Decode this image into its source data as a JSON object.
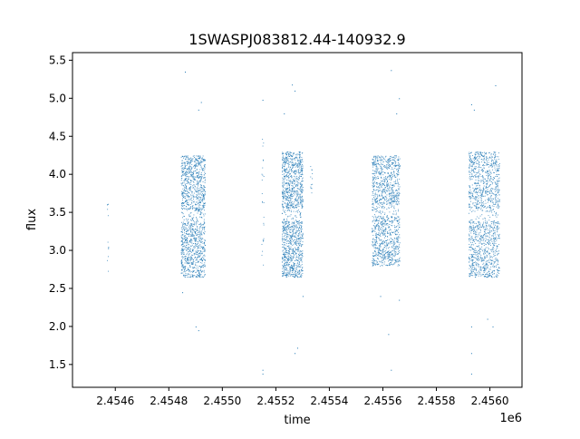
{
  "chart_data": {
    "type": "scatter",
    "title": "1SWASPJ083812.44-140932.9",
    "xlabel": "time",
    "ylabel": "flux",
    "x_offset_label": "1e6",
    "xlim": [
      2.45444,
      2.45612
    ],
    "ylim": [
      1.2,
      5.6
    ],
    "x_ticks": [
      2.4546,
      2.4548,
      2.455,
      2.4552,
      2.4554,
      2.4556,
      2.4558,
      2.456
    ],
    "x_tick_labels": [
      "2.4546",
      "2.4548",
      "2.4550",
      "2.4552",
      "2.4554",
      "2.4556",
      "2.4558",
      "2.4560"
    ],
    "y_ticks": [
      1.5,
      2.0,
      2.5,
      3.0,
      3.5,
      4.0,
      4.5,
      5.0,
      5.5
    ],
    "y_tick_labels": [
      "1.5",
      "2.0",
      "2.5",
      "3.0",
      "3.5",
      "4.0",
      "4.5",
      "5.0",
      "5.5"
    ],
    "grid": false,
    "series": [
      {
        "color": "#1f77b4",
        "marker": "point",
        "clusters": [
          {
            "x_range": [
              2.454568,
              2.454574
            ],
            "y_range": [
              2.5,
              3.9
            ],
            "count": 12,
            "outliers": []
          },
          {
            "x_range": [
              2.454845,
              2.454935
            ],
            "y_range": [
              2.65,
              4.25
            ],
            "count": 1400,
            "outliers": [
              [
                2.45486,
                5.35
              ],
              [
                2.45491,
                4.85
              ],
              [
                2.45492,
                4.95
              ],
              [
                2.4549,
                2.0
              ],
              [
                2.45491,
                1.95
              ],
              [
                2.45485,
                2.45
              ]
            ]
          },
          {
            "x_range": [
              2.455146,
              2.455154
            ],
            "y_range": [
              2.7,
              4.8
            ],
            "count": 25,
            "outliers": [
              [
                2.45515,
                1.43
              ],
              [
                2.45515,
                1.38
              ],
              [
                2.45515,
                4.98
              ]
            ]
          },
          {
            "x_range": [
              2.455222,
              2.4553
            ],
            "y_range": [
              2.65,
              4.3
            ],
            "count": 1400,
            "outliers": [
              [
                2.45526,
                5.18
              ],
              [
                2.45527,
                5.1
              ],
              [
                2.45523,
                4.8
              ],
              [
                2.45527,
                1.65
              ],
              [
                2.45528,
                1.72
              ],
              [
                2.4553,
                2.4
              ]
            ]
          },
          {
            "x_range": [
              2.455328,
              2.455336
            ],
            "y_range": [
              3.75,
              4.15
            ],
            "count": 12,
            "outliers": []
          },
          {
            "x_range": [
              2.455558,
              2.455662
            ],
            "y_range": [
              2.8,
              4.25
            ],
            "count": 1300,
            "outliers": [
              [
                2.45563,
                5.37
              ],
              [
                2.45566,
                5.0
              ],
              [
                2.45565,
                4.8
              ],
              [
                2.45563,
                1.43
              ],
              [
                2.45562,
                1.9
              ],
              [
                2.45559,
                2.4
              ],
              [
                2.45566,
                2.35
              ]
            ]
          },
          {
            "x_range": [
              2.45592,
              2.456035
            ],
            "y_range": [
              2.65,
              4.3
            ],
            "count": 1400,
            "outliers": [
              [
                2.45593,
                4.92
              ],
              [
                2.45594,
                4.85
              ],
              [
                2.45602,
                5.17
              ],
              [
                2.45593,
                1.38
              ],
              [
                2.45593,
                1.65
              ],
              [
                2.45593,
                2.0
              ],
              [
                2.45599,
                2.1
              ],
              [
                2.45601,
                2.0
              ]
            ]
          }
        ]
      }
    ]
  }
}
